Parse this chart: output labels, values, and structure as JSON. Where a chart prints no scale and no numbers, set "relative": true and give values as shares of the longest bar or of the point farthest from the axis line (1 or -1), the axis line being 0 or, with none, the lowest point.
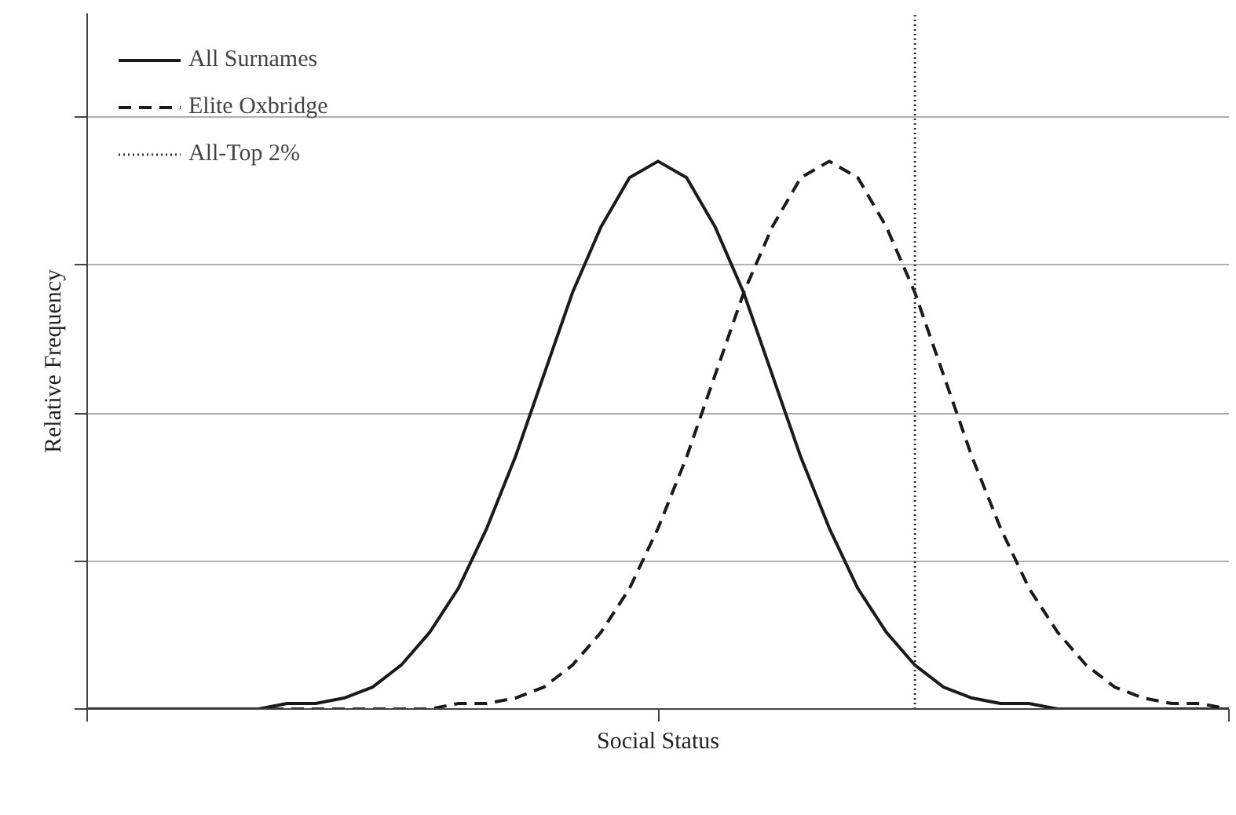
{
  "chart_data": {
    "type": "line",
    "relative": true,
    "xlabel": "Social Status",
    "ylabel": "Relative Frequency",
    "categories": [
      null,
      null,
      null,
      null,
      null,
      null,
      null,
      null,
      null,
      null,
      null,
      null,
      null,
      null,
      null,
      null,
      null,
      null,
      null,
      null,
      null,
      null,
      null,
      null,
      null,
      null,
      null,
      null,
      null,
      null,
      null,
      null,
      null,
      null,
      null,
      null,
      null,
      null,
      null,
      null,
      null
    ],
    "grid": "y",
    "legend": "top left",
    "series": [
      {
        "name": "All Surnames",
        "color": "#1a1a1a",
        "line_style": "solid",
        "values": [
          0,
          0,
          0,
          0,
          0,
          0,
          0,
          0.01,
          0.01,
          0.02,
          0.04,
          0.08,
          0.14,
          0.22,
          0.33,
          0.46,
          0.61,
          0.76,
          0.88,
          0.97,
          1,
          0.97,
          0.88,
          0.76,
          0.61,
          0.46,
          0.33,
          0.22,
          0.14,
          0.08,
          0.04,
          0.02,
          0.01,
          0.01,
          0,
          0,
          0,
          0,
          0,
          0,
          0
        ]
      },
      {
        "name": "Elite Oxbridge",
        "color": "#1a1a1a",
        "line_style": "dashed",
        "values": [
          0,
          0,
          0,
          0,
          0,
          0,
          0,
          0,
          0,
          0,
          0,
          0,
          0,
          0.01,
          0.01,
          0.02,
          0.04,
          0.08,
          0.14,
          0.22,
          0.33,
          0.46,
          0.61,
          0.76,
          0.88,
          0.97,
          1,
          0.97,
          0.88,
          0.76,
          0.61,
          0.46,
          0.33,
          0.22,
          0.14,
          0.08,
          0.04,
          0.02,
          0.01,
          0.01,
          0
        ]
      }
    ],
    "ref_lines": [
      {
        "axis": "x",
        "label": "All-Top 2%",
        "color": "#333333",
        "line_style": "dotted"
      }
    ]
  }
}
